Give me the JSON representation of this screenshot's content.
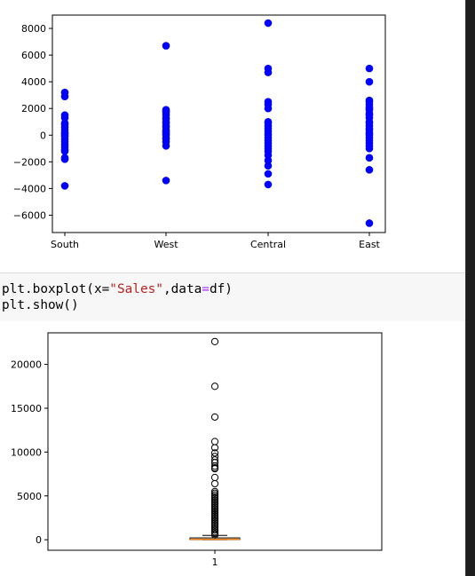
{
  "code_cell": {
    "lines": [
      [
        {
          "t": "plt.boxplot(x=",
          "k": "plain"
        },
        {
          "t": "\"Sales\"",
          "k": "str"
        },
        {
          "t": ",data",
          "k": "plain"
        },
        {
          "t": "=",
          "k": "op"
        },
        {
          "t": "df)",
          "k": "plain"
        }
      ],
      [
        {
          "t": "plt.show()",
          "k": "plain"
        }
      ]
    ]
  },
  "chart_data": [
    {
      "type": "scatter",
      "categories": [
        "South",
        "West",
        "Central",
        "East"
      ],
      "ylim": [
        -7300,
        9000
      ],
      "yticks": [
        8000,
        6000,
        4000,
        2000,
        0,
        -2000,
        -4000,
        -6000
      ],
      "ytick_labels": [
        "8000",
        "6000",
        "4000",
        "2000",
        "0",
        "−2000",
        "−4000",
        "−6000"
      ],
      "color": "#0000ff",
      "series": [
        {
          "category": "South",
          "values": [
            3200,
            2900,
            1500,
            1300,
            900,
            800,
            600,
            400,
            200,
            100,
            0,
            -100,
            -300,
            -500,
            -700,
            -900,
            -1100,
            -1200,
            -1700,
            -1800,
            -3800
          ]
        },
        {
          "category": "West",
          "values": [
            6700,
            1900,
            1800,
            1700,
            1500,
            1300,
            1200,
            1000,
            900,
            700,
            600,
            400,
            300,
            200,
            100,
            0,
            -200,
            -300,
            -500,
            -800,
            -3400
          ]
        },
        {
          "category": "Central",
          "values": [
            8400,
            5000,
            4700,
            2500,
            2300,
            2000,
            1000,
            900,
            700,
            500,
            300,
            100,
            0,
            -200,
            -400,
            -600,
            -800,
            -1000,
            -1200,
            -1500,
            -1900,
            -2300,
            -2900,
            -3700
          ]
        },
        {
          "category": "East",
          "values": [
            5000,
            4000,
            2600,
            2500,
            2300,
            2100,
            2000,
            1900,
            1600,
            1500,
            1300,
            1000,
            900,
            700,
            500,
            400,
            200,
            100,
            0,
            -200,
            -400,
            -600,
            -800,
            -1000,
            -1700,
            -2600,
            -6600
          ]
        }
      ]
    },
    {
      "type": "boxplot",
      "categories": [
        "1"
      ],
      "ylim": [
        -1200,
        23600
      ],
      "yticks": [
        20000,
        15000,
        10000,
        5000,
        0
      ],
      "ytick_labels": [
        "20000",
        "15000",
        "10000",
        "5000",
        "0"
      ],
      "box": {
        "min": 0,
        "q1": 17,
        "median": 55,
        "q3": 210,
        "max": 500
      },
      "median_color": "#ff7f0e",
      "outliers": [
        22600,
        17500,
        14000,
        11200,
        10500,
        9900,
        9500,
        9100,
        8800,
        8400,
        8200,
        8100,
        7100,
        6400,
        5500,
        5300,
        5100,
        4900,
        4700,
        4500,
        4300,
        4100,
        3900,
        3700,
        3500,
        3300,
        3100,
        2900,
        2700,
        2500,
        2300,
        2100,
        1900,
        1700,
        1500,
        1300,
        1100,
        900,
        700,
        550
      ]
    }
  ]
}
